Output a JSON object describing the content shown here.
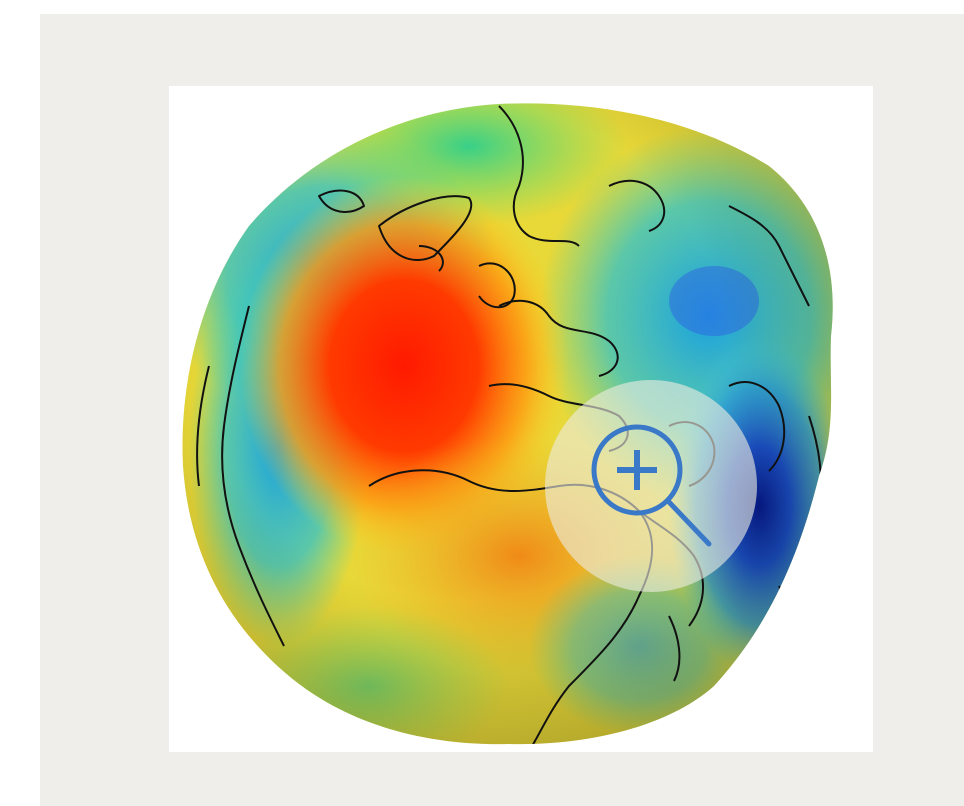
{
  "viewer": {
    "image_subject": "geoid-globe",
    "zoom_icon": "zoom-in-magnifier-icon",
    "colors": {
      "background": "#efeeea",
      "frame": "#ffffff",
      "zoom_overlay": "#ebebe1",
      "zoom_icon": "#3a78c8"
    }
  }
}
